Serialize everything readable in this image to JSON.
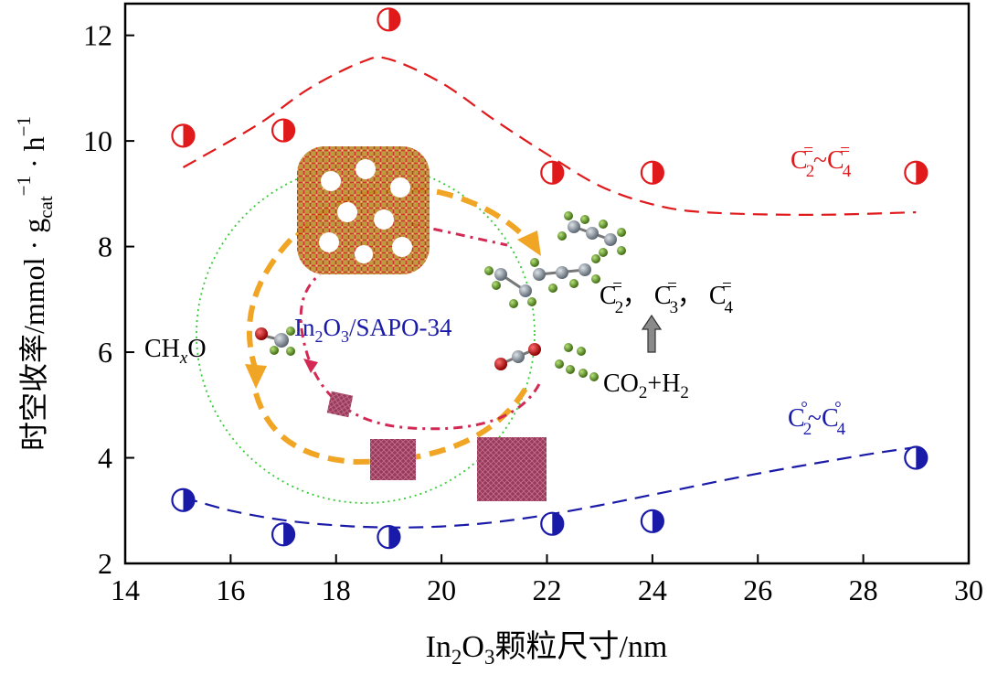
{
  "chart_data": {
    "type": "scatter",
    "xlabel": {
      "pre": "In",
      "s1": "2",
      "mid": "O",
      "s2": "3",
      "post": "颗粒尺寸/nm"
    },
    "ylabel": {
      "main": "时空收率/mmol · g",
      "sub": "cat",
      "sup1": "−1",
      "mid": " · h",
      "sup2": "−1"
    },
    "xlim": [
      14,
      30
    ],
    "ylim": [
      2,
      12.6
    ],
    "xticks": [
      "14",
      "16",
      "18",
      "20",
      "22",
      "24",
      "26",
      "28",
      "30"
    ],
    "yticks": [
      "2",
      "4",
      "6",
      "8",
      "10",
      "12"
    ],
    "grid": false,
    "series": [
      {
        "name": "C2=~C4=",
        "label": {
          "base": "C",
          "sub1": "2",
          "sup1": "=",
          "sep": "~C",
          "sub2": "4",
          "sup2": "="
        },
        "color": "#e0191b",
        "marker": "half-filled-circle",
        "x": [
          15.1,
          17.0,
          19.0,
          22.1,
          24.0,
          29.0
        ],
        "y": [
          10.1,
          10.2,
          12.3,
          9.4,
          9.4,
          9.4
        ],
        "trend_x": [
          15.1,
          16.5,
          17.5,
          18.5,
          19.0,
          20.0,
          21.0,
          22.0,
          23.0,
          24.0,
          25.0,
          27.0,
          29.0
        ],
        "trend_y": [
          9.5,
          10.3,
          11.0,
          11.5,
          11.55,
          11.1,
          10.4,
          9.75,
          9.15,
          8.8,
          8.65,
          8.6,
          8.65
        ]
      },
      {
        "name": "C2°~C4°",
        "label": {
          "base": "C",
          "sub1": "2",
          "sup1": "°",
          "sep": "~C",
          "sub2": "4",
          "sup2": "°"
        },
        "color": "#1a1aa8",
        "marker": "half-filled-circle",
        "x": [
          15.1,
          17.0,
          19.0,
          22.1,
          24.0,
          29.0
        ],
        "y": [
          3.2,
          2.55,
          2.5,
          2.75,
          2.8,
          4.0
        ],
        "trend_x": [
          15.1,
          16.0,
          17.0,
          18.0,
          19.0,
          20.0,
          21.0,
          22.0,
          23.0,
          24.0,
          26.0,
          28.0,
          29.0
        ],
        "trend_y": [
          3.25,
          3.0,
          2.82,
          2.72,
          2.68,
          2.7,
          2.78,
          2.92,
          3.1,
          3.3,
          3.7,
          4.05,
          4.2
        ]
      }
    ],
    "annotations": {
      "catalyst": {
        "pre": "In",
        "s1": "2",
        "mid": "O",
        "s2": "3",
        "post": "/SAPO-34"
      },
      "chxo": {
        "pre": "CH",
        "sub": "x",
        "post": "O"
      },
      "olefins": {
        "c1": "C",
        "c1sub": "2",
        "c1sup": "=",
        "c2": "， C",
        "c2sub": "3",
        "c2sup": "=",
        "c3": "， C",
        "c3sub": "4",
        "c3sup": "="
      },
      "feed": {
        "pre": "CO",
        "sub": "2",
        "post": "+H",
        "sub2": "2"
      }
    }
  }
}
